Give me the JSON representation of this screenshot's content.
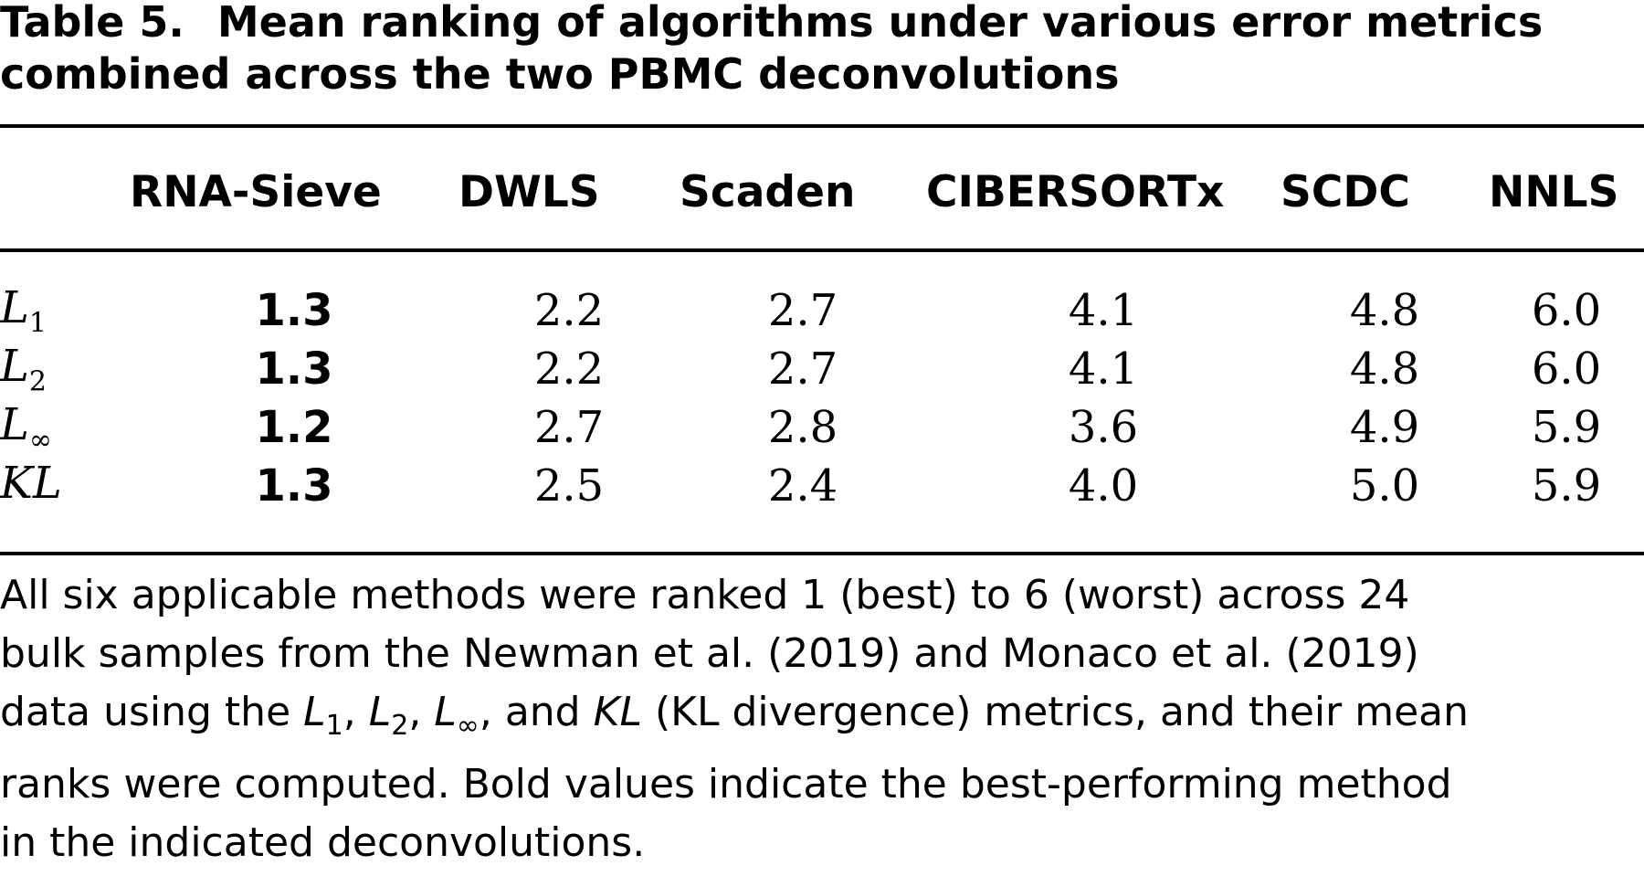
{
  "caption": {
    "label": "Table 5.",
    "line1": "Mean ranking of algorithms under various error metrics",
    "line2": "combined across the two PBMC deconvolutions"
  },
  "table": {
    "columns": [
      "",
      "RNA-Sieve",
      "DWLS",
      "Scaden",
      "CIBERSORTx",
      "SCDC",
      "NNLS"
    ],
    "rows": [
      {
        "metric": "L",
        "sub": "1",
        "values": [
          "1.3",
          "2.2",
          "2.7",
          "4.1",
          "4.8",
          "6.0"
        ],
        "bold_index": 0
      },
      {
        "metric": "L",
        "sub": "2",
        "values": [
          "1.3",
          "2.2",
          "2.7",
          "4.1",
          "4.8",
          "6.0"
        ],
        "bold_index": 0
      },
      {
        "metric": "L",
        "sub": "∞",
        "values": [
          "1.2",
          "2.7",
          "2.8",
          "3.6",
          "4.9",
          "5.9"
        ],
        "bold_index": 0
      },
      {
        "metric": "KL",
        "sub": "",
        "values": [
          "1.3",
          "2.5",
          "2.4",
          "4.0",
          "5.0",
          "5.9"
        ],
        "bold_index": 0
      }
    ]
  },
  "footnote": {
    "l1": "All six applicable methods were ranked 1 (best) to 6 (worst) across 24",
    "l2": "bulk samples from the Newman et al. (2019) and Monaco et al. (2019)",
    "l3a": "data using the ",
    "m1": "L",
    "m1sub": "1",
    "sep1": ", ",
    "m2": "L",
    "m2sub": "2",
    "sep2": ", ",
    "m3": "L",
    "m3sub": "∞",
    "l3b": ", and ",
    "m4": "KL",
    "l3c": " (KL divergence) metrics, and their mean",
    "l4": "ranks were computed. Bold values indicate the best-performing method",
    "l5": "in the indicated deconvolutions."
  }
}
